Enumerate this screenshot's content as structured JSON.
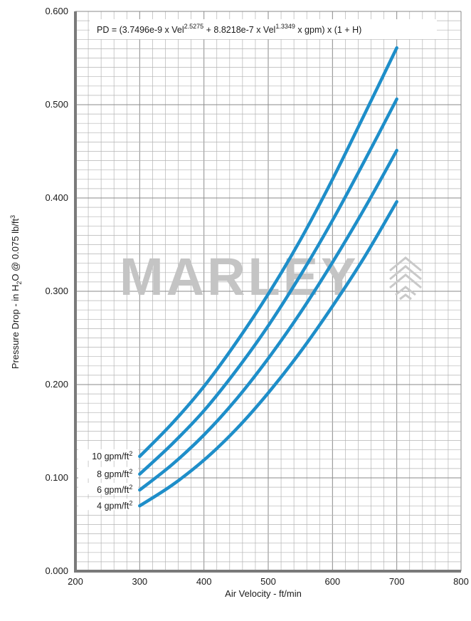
{
  "chart_data": {
    "type": "line",
    "title": "",
    "formula": {
      "prefix": "PD = (3.7496e-9 x Vel",
      "exp1": "2.5275",
      "mid": " + 8.8218e-7 x Vel",
      "exp2": "1.3349",
      "suffix": " x gpm) x (1 + H)"
    },
    "xlabel": "Air Velocity - ft/min",
    "ylabel_parts": {
      "a": "Pressure Drop - in H",
      "sub": "2",
      "b": "O @ 0.075 lb/ft",
      "sup": "3"
    },
    "xlim": [
      200,
      800
    ],
    "ylim": [
      0,
      0.6
    ],
    "x_ticks": [
      "200",
      "300",
      "400",
      "500",
      "600",
      "700",
      "800"
    ],
    "y_ticks": [
      "0.000",
      "0.100",
      "0.200",
      "0.300",
      "0.400",
      "0.500",
      "0.600"
    ],
    "grid": true,
    "line_color": "#1e8ec9",
    "series": [
      {
        "name": "10 gpm/ft",
        "unit_sup": "2",
        "x": [
          300,
          350,
          400,
          450,
          500,
          550,
          600,
          650,
          700
        ],
        "values": [
          0.123,
          0.158,
          0.198,
          0.245,
          0.297,
          0.355,
          0.42,
          0.49,
          0.561
        ]
      },
      {
        "name": "8 gpm/ft",
        "unit_sup": "2",
        "x": [
          300,
          350,
          400,
          450,
          500,
          550,
          600,
          650,
          700
        ],
        "values": [
          0.104,
          0.136,
          0.172,
          0.215,
          0.263,
          0.317,
          0.376,
          0.44,
          0.506
        ]
      },
      {
        "name": "6 gpm/ft",
        "unit_sup": "2",
        "x": [
          300,
          350,
          400,
          450,
          500,
          550,
          600,
          650,
          700
        ],
        "values": [
          0.087,
          0.114,
          0.146,
          0.184,
          0.228,
          0.277,
          0.331,
          0.389,
          0.451
        ]
      },
      {
        "name": "4 gpm/ft",
        "unit_sup": "2",
        "x": [
          300,
          350,
          400,
          450,
          500,
          550,
          600,
          650,
          700
        ],
        "values": [
          0.07,
          0.092,
          0.119,
          0.152,
          0.191,
          0.235,
          0.284,
          0.337,
          0.396
        ]
      }
    ]
  },
  "watermark": {
    "text": "MARLEY"
  }
}
